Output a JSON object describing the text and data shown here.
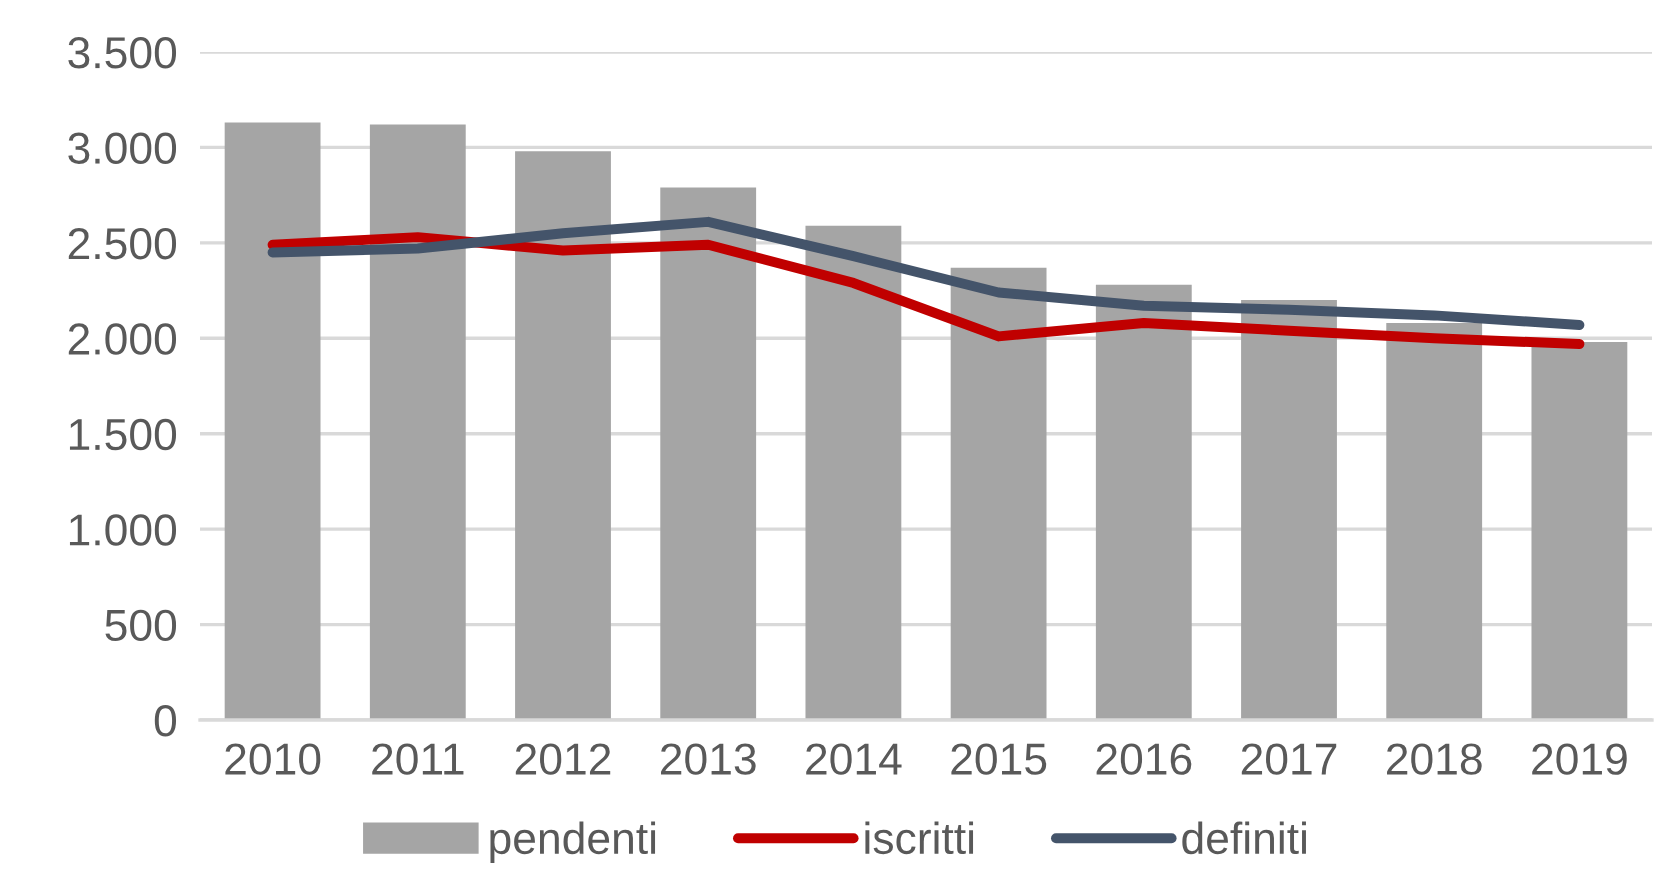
{
  "chart_data": {
    "type": "bar",
    "categories": [
      "2010",
      "2011",
      "2012",
      "2013",
      "2014",
      "2015",
      "2016",
      "2017",
      "2018",
      "2019"
    ],
    "series": [
      {
        "name": "pendenti",
        "color": "#a5a5a5",
        "values": [
          3130,
          3120,
          2980,
          2790,
          2590,
          2370,
          2280,
          2200,
          2080,
          1980
        ]
      },
      {
        "name": "iscritti",
        "type": "line",
        "color": "#c00000",
        "values": [
          2490,
          2530,
          2460,
          2490,
          2290,
          2010,
          2080,
          2040,
          2000,
          1970
        ]
      },
      {
        "name": "definiti",
        "type": "line",
        "color": "#44546a",
        "values": [
          2450,
          2470,
          2550,
          2610,
          2430,
          2240,
          2170,
          2150,
          2120,
          2070
        ]
      }
    ],
    "ylim": [
      0,
      3500
    ],
    "yticks": [
      0,
      500,
      {
        "value": 1000,
        "label": "1.000"
      },
      {
        "value": 1500,
        "label": "1.500"
      },
      {
        "value": 2000,
        "label": "2.000"
      },
      {
        "value": 2500,
        "label": "2.500"
      },
      {
        "value": 3000,
        "label": "3.000"
      },
      {
        "value": 3500,
        "label": "3.500"
      }
    ],
    "grid": "y",
    "legend": "bottom",
    "line_style": "solid"
  }
}
